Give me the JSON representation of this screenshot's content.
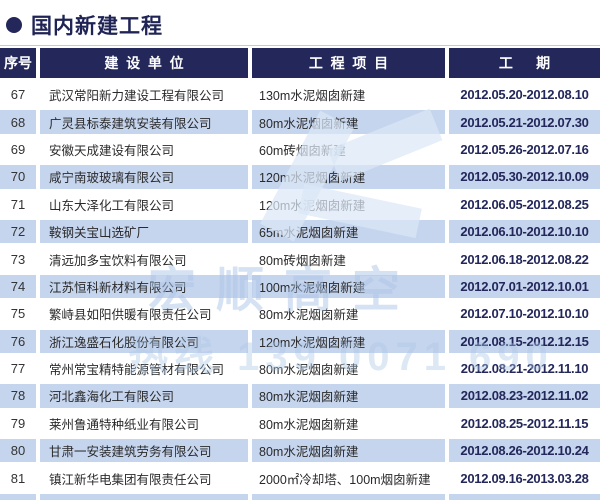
{
  "page": {
    "title": "国内新建工程"
  },
  "colors": {
    "header_navy": "#23275a",
    "title_navy": "#1f2455",
    "row_stripe_blue": "#c6d5ee",
    "period_text_navy": "#23275a",
    "body_text": "#2a2a2a"
  },
  "watermark": {
    "brand": "宏顺高空",
    "digits": "热线 139 0071 690"
  },
  "table": {
    "headers": {
      "no": "序号",
      "company": "建  设  单  位",
      "project": "工  程  项  目",
      "period": "工      期"
    },
    "rows": [
      {
        "no": "67",
        "company": "武汉常阳新力建设工程有限公司",
        "project": "130m水泥烟囱新建",
        "period": "2012.05.20-2012.08.10"
      },
      {
        "no": "68",
        "company": "广灵县标泰建筑安装有限公司",
        "project": "80m水泥烟囱新建",
        "period": "2012.05.21-2012.07.30"
      },
      {
        "no": "69",
        "company": "安徽天成建设有限公司",
        "project": "60m砖烟囱新建",
        "period": "2012.05.26-2012.07.16"
      },
      {
        "no": "70",
        "company": "咸宁南玻玻璃有限公司",
        "project": "120m水泥烟囱新建",
        "period": "2012.05.30-2012.10.09"
      },
      {
        "no": "71",
        "company": "山东大泽化工有限公司",
        "project": "120m水泥烟囱新建",
        "period": "2012.06.05-2012.08.25"
      },
      {
        "no": "72",
        "company": "鞍钢关宝山选矿厂",
        "project": "65m水泥烟囱新建",
        "period": "2012.06.10-2012.10.10"
      },
      {
        "no": "73",
        "company": "清远加多宝饮料有限公司",
        "project": "80m砖烟囱新建",
        "period": "2012.06.18-2012.08.22"
      },
      {
        "no": "74",
        "company": "江苏恒科新材料有限公司",
        "project": "100m水泥烟囱新建",
        "period": "2012.07.01-2012.10.01"
      },
      {
        "no": "75",
        "company": "繁峙县如阳供暖有限责任公司",
        "project": "80m水泥烟囱新建",
        "period": "2012.07.10-2012.10.10"
      },
      {
        "no": "76",
        "company": "浙江逸盛石化股份有限公司",
        "project": "120m水泥烟囱新建",
        "period": "2012.08.15-2012.12.15"
      },
      {
        "no": "77",
        "company": "常州常宝精特能源管材有限公司",
        "project": "80m水泥烟囱新建",
        "period": "2012.08.21-2012.11.10"
      },
      {
        "no": "78",
        "company": "河北鑫海化工有限公司",
        "project": "80m水泥烟囱新建",
        "period": "2012.08.23-2012.11.02"
      },
      {
        "no": "79",
        "company": "莱州鲁通特种纸业有限公司",
        "project": "80m水泥烟囱新建",
        "period": "2012.08.25-2012.11.15"
      },
      {
        "no": "80",
        "company": "甘肃一安装建筑劳务有限公司",
        "project": "80m水泥烟囱新建",
        "period": "2012.08.26-2012.10.24"
      },
      {
        "no": "81",
        "company": "镇江新华电集团有限责任公司",
        "project": "2000㎡冷却塔、100m烟囱新建",
        "period": "2012.09.16-2013.03.28"
      }
    ]
  }
}
